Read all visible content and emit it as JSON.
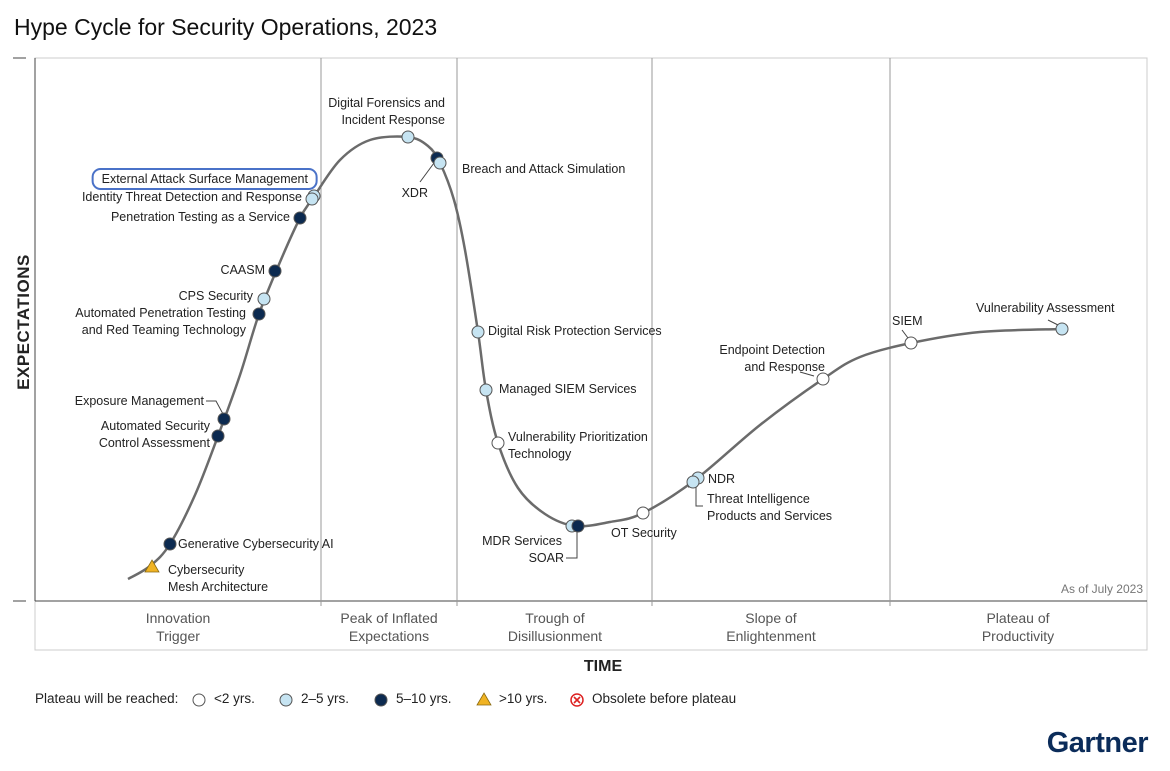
{
  "title": "Hype Cycle for Security Operations, 2023",
  "y_axis_label": "EXPECTATIONS",
  "x_axis_label": "TIME",
  "as_of": "As of July 2023",
  "phases": [
    "Innovation\nTrigger",
    "Peak of Inflated\nExpectations",
    "Trough of\nDisillusionment",
    "Slope of\nEnlightenment",
    "Plateau of\nProductivity"
  ],
  "legend": {
    "title": "Plateau will be reached:",
    "items": [
      "<2 yrs.",
      "2–5 yrs.",
      "5–10 yrs.",
      ">10 yrs.",
      "Obsolete before plateau"
    ]
  },
  "technologies": [
    {
      "label": "Digital Forensics and\nIncident Response",
      "plateau": "2–5 yrs."
    },
    {
      "label": "XDR",
      "plateau": "5–10 yrs."
    },
    {
      "label": "Breach and Attack Simulation",
      "plateau": "2–5 yrs."
    },
    {
      "label": "External Attack Surface Management",
      "plateau": "2–5 yrs.",
      "highlight": true
    },
    {
      "label": "Identity Threat Detection and Response",
      "plateau": "2–5 yrs."
    },
    {
      "label": "Penetration Testing as a Service",
      "plateau": "5–10 yrs."
    },
    {
      "label": "CAASM",
      "plateau": "5–10 yrs."
    },
    {
      "label": "CPS Security",
      "plateau": "2–5 yrs."
    },
    {
      "label": "Automated Penetration Testing\nand Red Teaming Technology",
      "plateau": "5–10 yrs."
    },
    {
      "label": "Exposure Management",
      "plateau": "5–10 yrs."
    },
    {
      "label": "Automated Security\nControl Assessment",
      "plateau": "5–10 yrs."
    },
    {
      "label": "Generative Cybersecurity AI",
      "plateau": "5–10 yrs."
    },
    {
      "label": "Cybersecurity\nMesh Architecture",
      "plateau": ">10 yrs."
    },
    {
      "label": "Digital Risk Protection Services",
      "plateau": "2–5 yrs."
    },
    {
      "label": "Managed SIEM Services",
      "plateau": "2–5 yrs."
    },
    {
      "label": "Vulnerability Prioritization\nTechnology",
      "plateau": "<2 yrs."
    },
    {
      "label": "MDR Services",
      "plateau": "2–5 yrs."
    },
    {
      "label": "SOAR",
      "plateau": "5–10 yrs."
    },
    {
      "label": "OT Security",
      "plateau": "<2 yrs."
    },
    {
      "label": "NDR",
      "plateau": "2–5 yrs."
    },
    {
      "label": "Threat Intelligence\nProducts and Services",
      "plateau": "2–5 yrs."
    },
    {
      "label": "Endpoint Detection\nand Response",
      "plateau": "<2 yrs."
    },
    {
      "label": "SIEM",
      "plateau": "<2 yrs."
    },
    {
      "label": "Vulnerability Assessment",
      "plateau": "2–5 yrs."
    }
  ],
  "logo": "Gartner"
}
